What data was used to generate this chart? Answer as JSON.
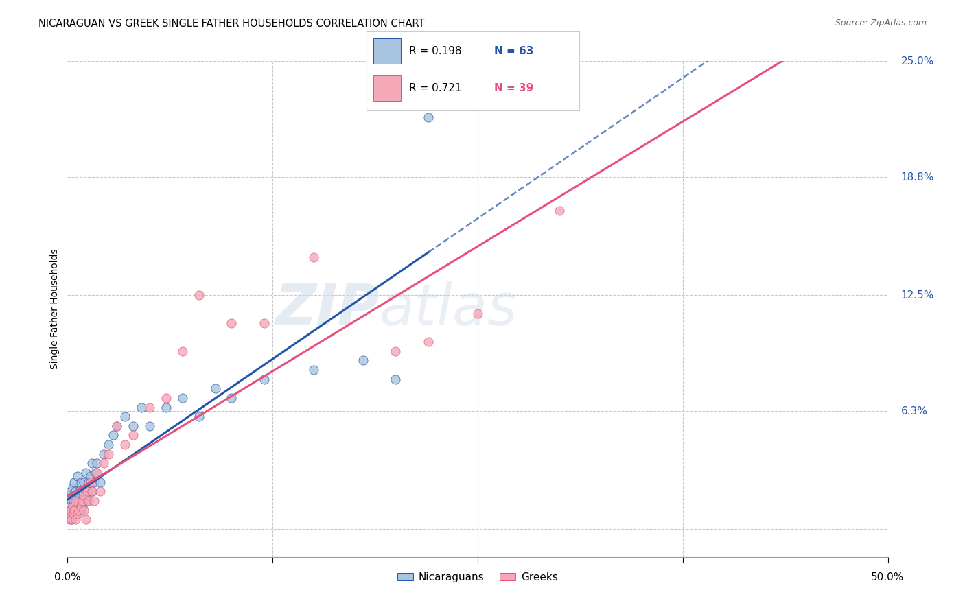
{
  "title": "NICARAGUAN VS GREEK SINGLE FATHER HOUSEHOLDS CORRELATION CHART",
  "source": "Source: ZipAtlas.com",
  "ylabel": "Single Father Households",
  "ytick_labels": [
    "6.3%",
    "12.5%",
    "18.8%",
    "25.0%"
  ],
  "ytick_values": [
    6.3,
    12.5,
    18.8,
    25.0
  ],
  "xlim": [
    0.0,
    50.0
  ],
  "ylim": [
    -1.5,
    25.0
  ],
  "legend_label1": "Nicaraguans",
  "legend_label2": "Greeks",
  "r1": "0.198",
  "n1": "63",
  "r2": "0.721",
  "n2": "39",
  "color_nicaraguan": "#a8c4e0",
  "color_greek": "#f4a8b8",
  "color_line_nicaraguan": "#2255aa",
  "color_line_greek": "#e8507a",
  "watermark_zip": "ZIP",
  "watermark_atlas": "atlas",
  "background_color": "#ffffff",
  "grid_color": "#c8c8c8",
  "nicaraguan_x": [
    0.1,
    0.15,
    0.2,
    0.2,
    0.25,
    0.3,
    0.3,
    0.35,
    0.4,
    0.4,
    0.45,
    0.5,
    0.5,
    0.55,
    0.6,
    0.6,
    0.65,
    0.7,
    0.7,
    0.75,
    0.8,
    0.8,
    0.85,
    0.9,
    0.9,
    1.0,
    1.0,
    1.1,
    1.1,
    1.2,
    1.2,
    1.3,
    1.4,
    1.5,
    1.5,
    1.6,
    1.7,
    1.8,
    2.0,
    2.2,
    2.5,
    2.8,
    3.0,
    3.5,
    4.0,
    4.5,
    5.0,
    6.0,
    7.0,
    8.0,
    9.0,
    10.0,
    12.0,
    15.0,
    18.0,
    20.0,
    22.0,
    0.12,
    0.18,
    0.25,
    0.35,
    0.55,
    0.75
  ],
  "nicaraguan_y": [
    1.2,
    1.8,
    2.0,
    1.0,
    1.5,
    2.2,
    1.0,
    1.5,
    1.8,
    2.5,
    1.2,
    1.0,
    2.0,
    1.5,
    1.2,
    2.8,
    1.0,
    1.5,
    2.0,
    1.8,
    1.0,
    2.5,
    1.5,
    1.2,
    2.0,
    1.5,
    2.5,
    1.8,
    3.0,
    1.5,
    2.2,
    2.5,
    2.8,
    2.0,
    3.5,
    2.5,
    3.0,
    3.5,
    2.5,
    4.0,
    4.5,
    5.0,
    5.5,
    6.0,
    5.5,
    6.5,
    5.5,
    6.5,
    7.0,
    6.0,
    7.5,
    7.0,
    8.0,
    8.5,
    9.0,
    8.0,
    22.0,
    0.8,
    1.0,
    0.5,
    0.8,
    0.8,
    1.0
  ],
  "greek_x": [
    0.1,
    0.15,
    0.2,
    0.25,
    0.3,
    0.35,
    0.4,
    0.5,
    0.5,
    0.6,
    0.7,
    0.8,
    0.9,
    1.0,
    1.0,
    1.1,
    1.2,
    1.3,
    1.4,
    1.5,
    1.6,
    1.8,
    2.0,
    2.2,
    2.5,
    3.0,
    3.5,
    4.0,
    5.0,
    6.0,
    7.0,
    8.0,
    10.0,
    12.0,
    15.0,
    20.0,
    22.0,
    25.0,
    30.0
  ],
  "greek_y": [
    0.5,
    0.8,
    1.0,
    0.5,
    1.2,
    0.8,
    1.0,
    0.5,
    1.5,
    0.8,
    1.0,
    1.2,
    1.5,
    1.0,
    1.8,
    0.5,
    2.0,
    1.5,
    2.5,
    2.0,
    1.5,
    3.0,
    2.0,
    3.5,
    4.0,
    5.5,
    4.5,
    5.0,
    6.5,
    7.0,
    9.5,
    12.5,
    11.0,
    11.0,
    14.5,
    9.5,
    10.0,
    11.5,
    17.0
  ]
}
